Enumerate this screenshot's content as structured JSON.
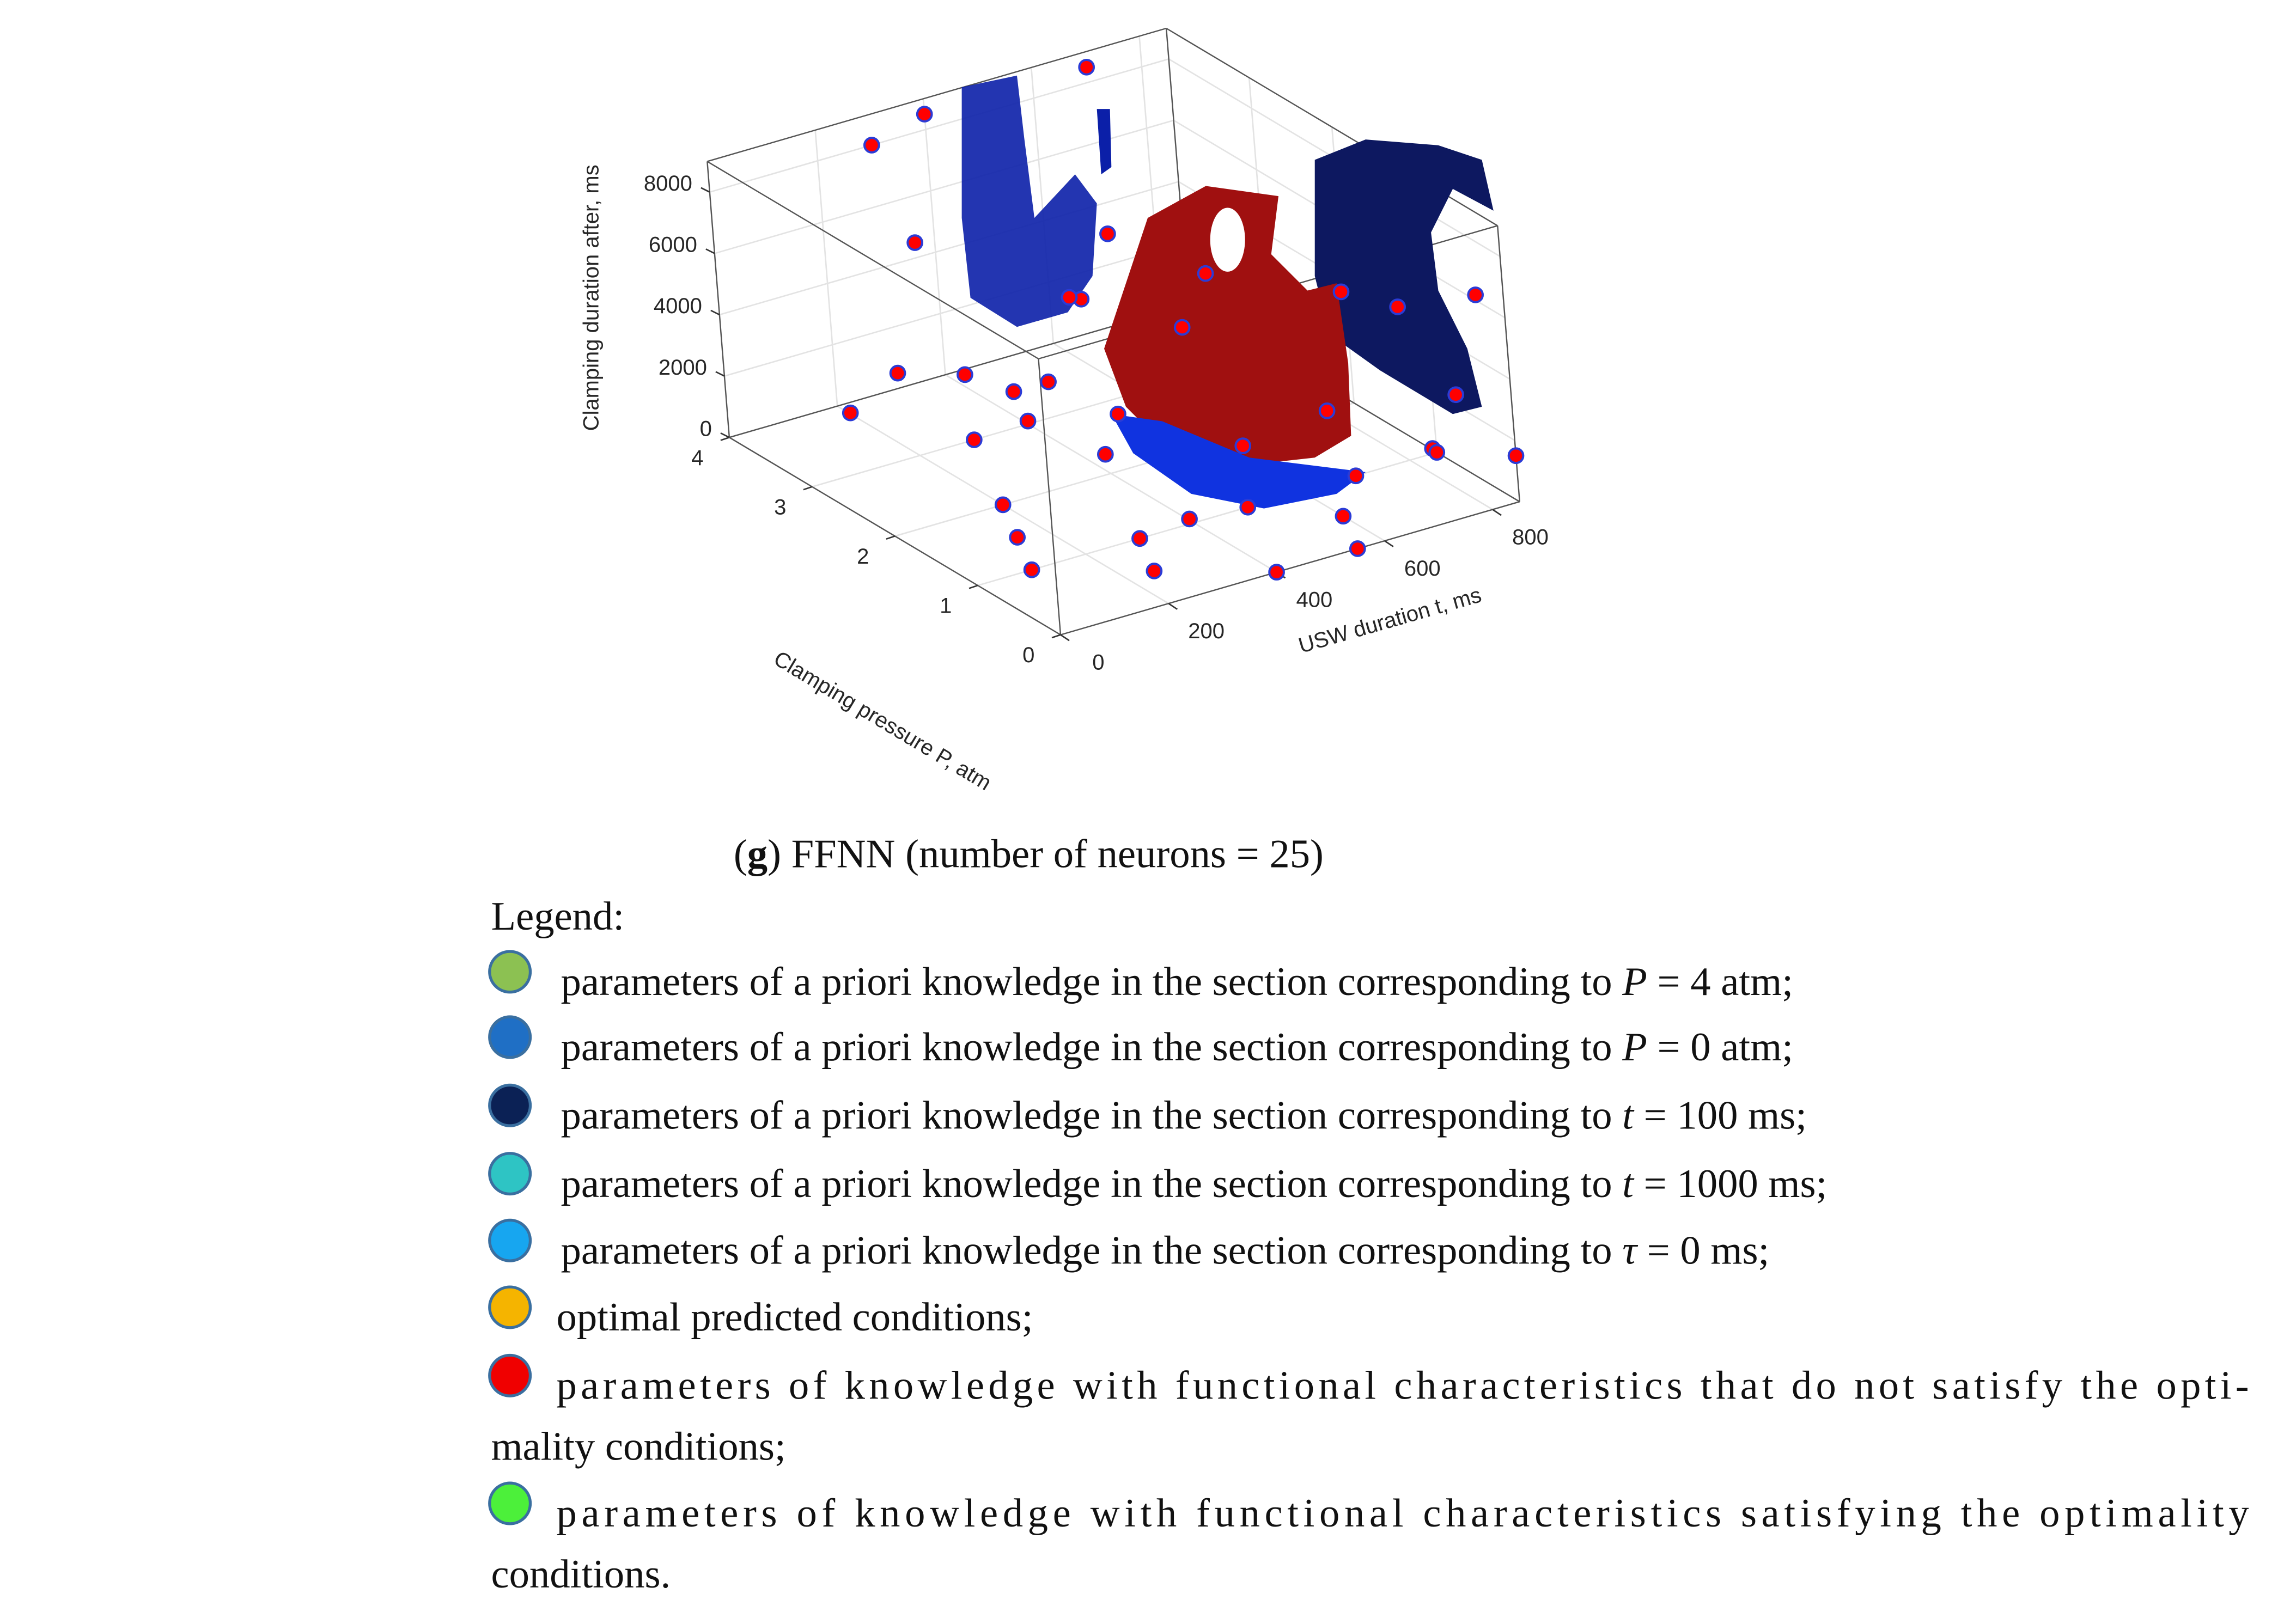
{
  "chart_data": {
    "type": "scatter3d",
    "xlabel": "USW duration t, ms",
    "ylabel": "Clamping pressure P, atm",
    "zlabel": "Clamping duration after, ms",
    "xlim": [
      0,
      850
    ],
    "ylim": [
      0,
      4
    ],
    "zlim": [
      0,
      9000
    ],
    "xticks": [
      0,
      200,
      400,
      600,
      800
    ],
    "yticks": [
      0,
      1,
      2,
      3,
      4
    ],
    "zticks": [
      0,
      2000,
      4000,
      6000,
      8000
    ],
    "grid": true,
    "color": "#ff0000",
    "edgecolor": "#2b3bd6",
    "x": [
      150,
      300,
      400,
      700,
      300,
      350,
      100,
      150,
      300,
      350,
      250,
      80,
      250,
      550,
      500,
      700,
      800,
      800,
      750,
      700,
      850,
      400,
      450,
      300,
      200,
      150,
      300,
      250,
      100,
      500,
      600,
      700,
      850,
      800,
      400,
      550,
      600,
      500
    ],
    "y": [
      2.5,
      4,
      4,
      4,
      1.5,
      2,
      2.5,
      2,
      2,
      1.5,
      1,
      3,
      0,
      2,
      1,
      1,
      0,
      1,
      0,
      0,
      0,
      3,
      3.5,
      3,
      2,
      1.5,
      1,
      0.5,
      1,
      1,
      0.5,
      1,
      1,
      2,
      0,
      0,
      2,
      2.5
    ],
    "z": [
      8000,
      8000,
      8500,
      8500,
      7000,
      6000,
      4000,
      4500,
      3500,
      3000,
      3000,
      2000,
      2500,
      4000,
      2000,
      6000,
      7000,
      5000,
      4000,
      2500,
      1500,
      100,
      0,
      0,
      0,
      0,
      0,
      0,
      0,
      0,
      0,
      0,
      0,
      0,
      0,
      0,
      5500,
      6500
    ]
  },
  "caption": {
    "prefix": "(",
    "label": "g",
    "text": ") FFNN (number of neurons = 25)"
  },
  "legend": {
    "title": "Legend:",
    "items": [
      {
        "color": "#8cc152",
        "before": "parameters of a priori knowledge in the section corresponding to ",
        "symbol": "P",
        "after": " = 4 atm;"
      },
      {
        "color": "#1f6fc5",
        "before": "parameters of a priori knowledge in the section corresponding to ",
        "symbol": "P",
        "after": " = 0 atm;"
      },
      {
        "color": "#0b2155",
        "before": "parameters of a priori knowledge in the section corresponding to ",
        "symbol": "t",
        "after": " = 100 ms;"
      },
      {
        "color": "#2ec4c4",
        "before": "parameters of a priori knowledge in the section corresponding to ",
        "symbol": "t",
        "after": " = 1000 ms;"
      },
      {
        "color": "#17a6f0",
        "before": "parameters of a priori knowledge in the section corresponding to ",
        "symbol": "τ",
        "after": " = 0 ms;"
      },
      {
        "color": "#f5b400",
        "lines": [
          "optimal predicted conditions;"
        ]
      },
      {
        "color": "#f00000",
        "lines": [
          "parameters of knowledge with functional characteristics that do not satisfy the opti-",
          "mality conditions;"
        ]
      },
      {
        "color": "#4cf03a",
        "lines": [
          "parameters of knowledge with functional characteristics satisfying the optimality",
          "conditions."
        ]
      }
    ]
  }
}
